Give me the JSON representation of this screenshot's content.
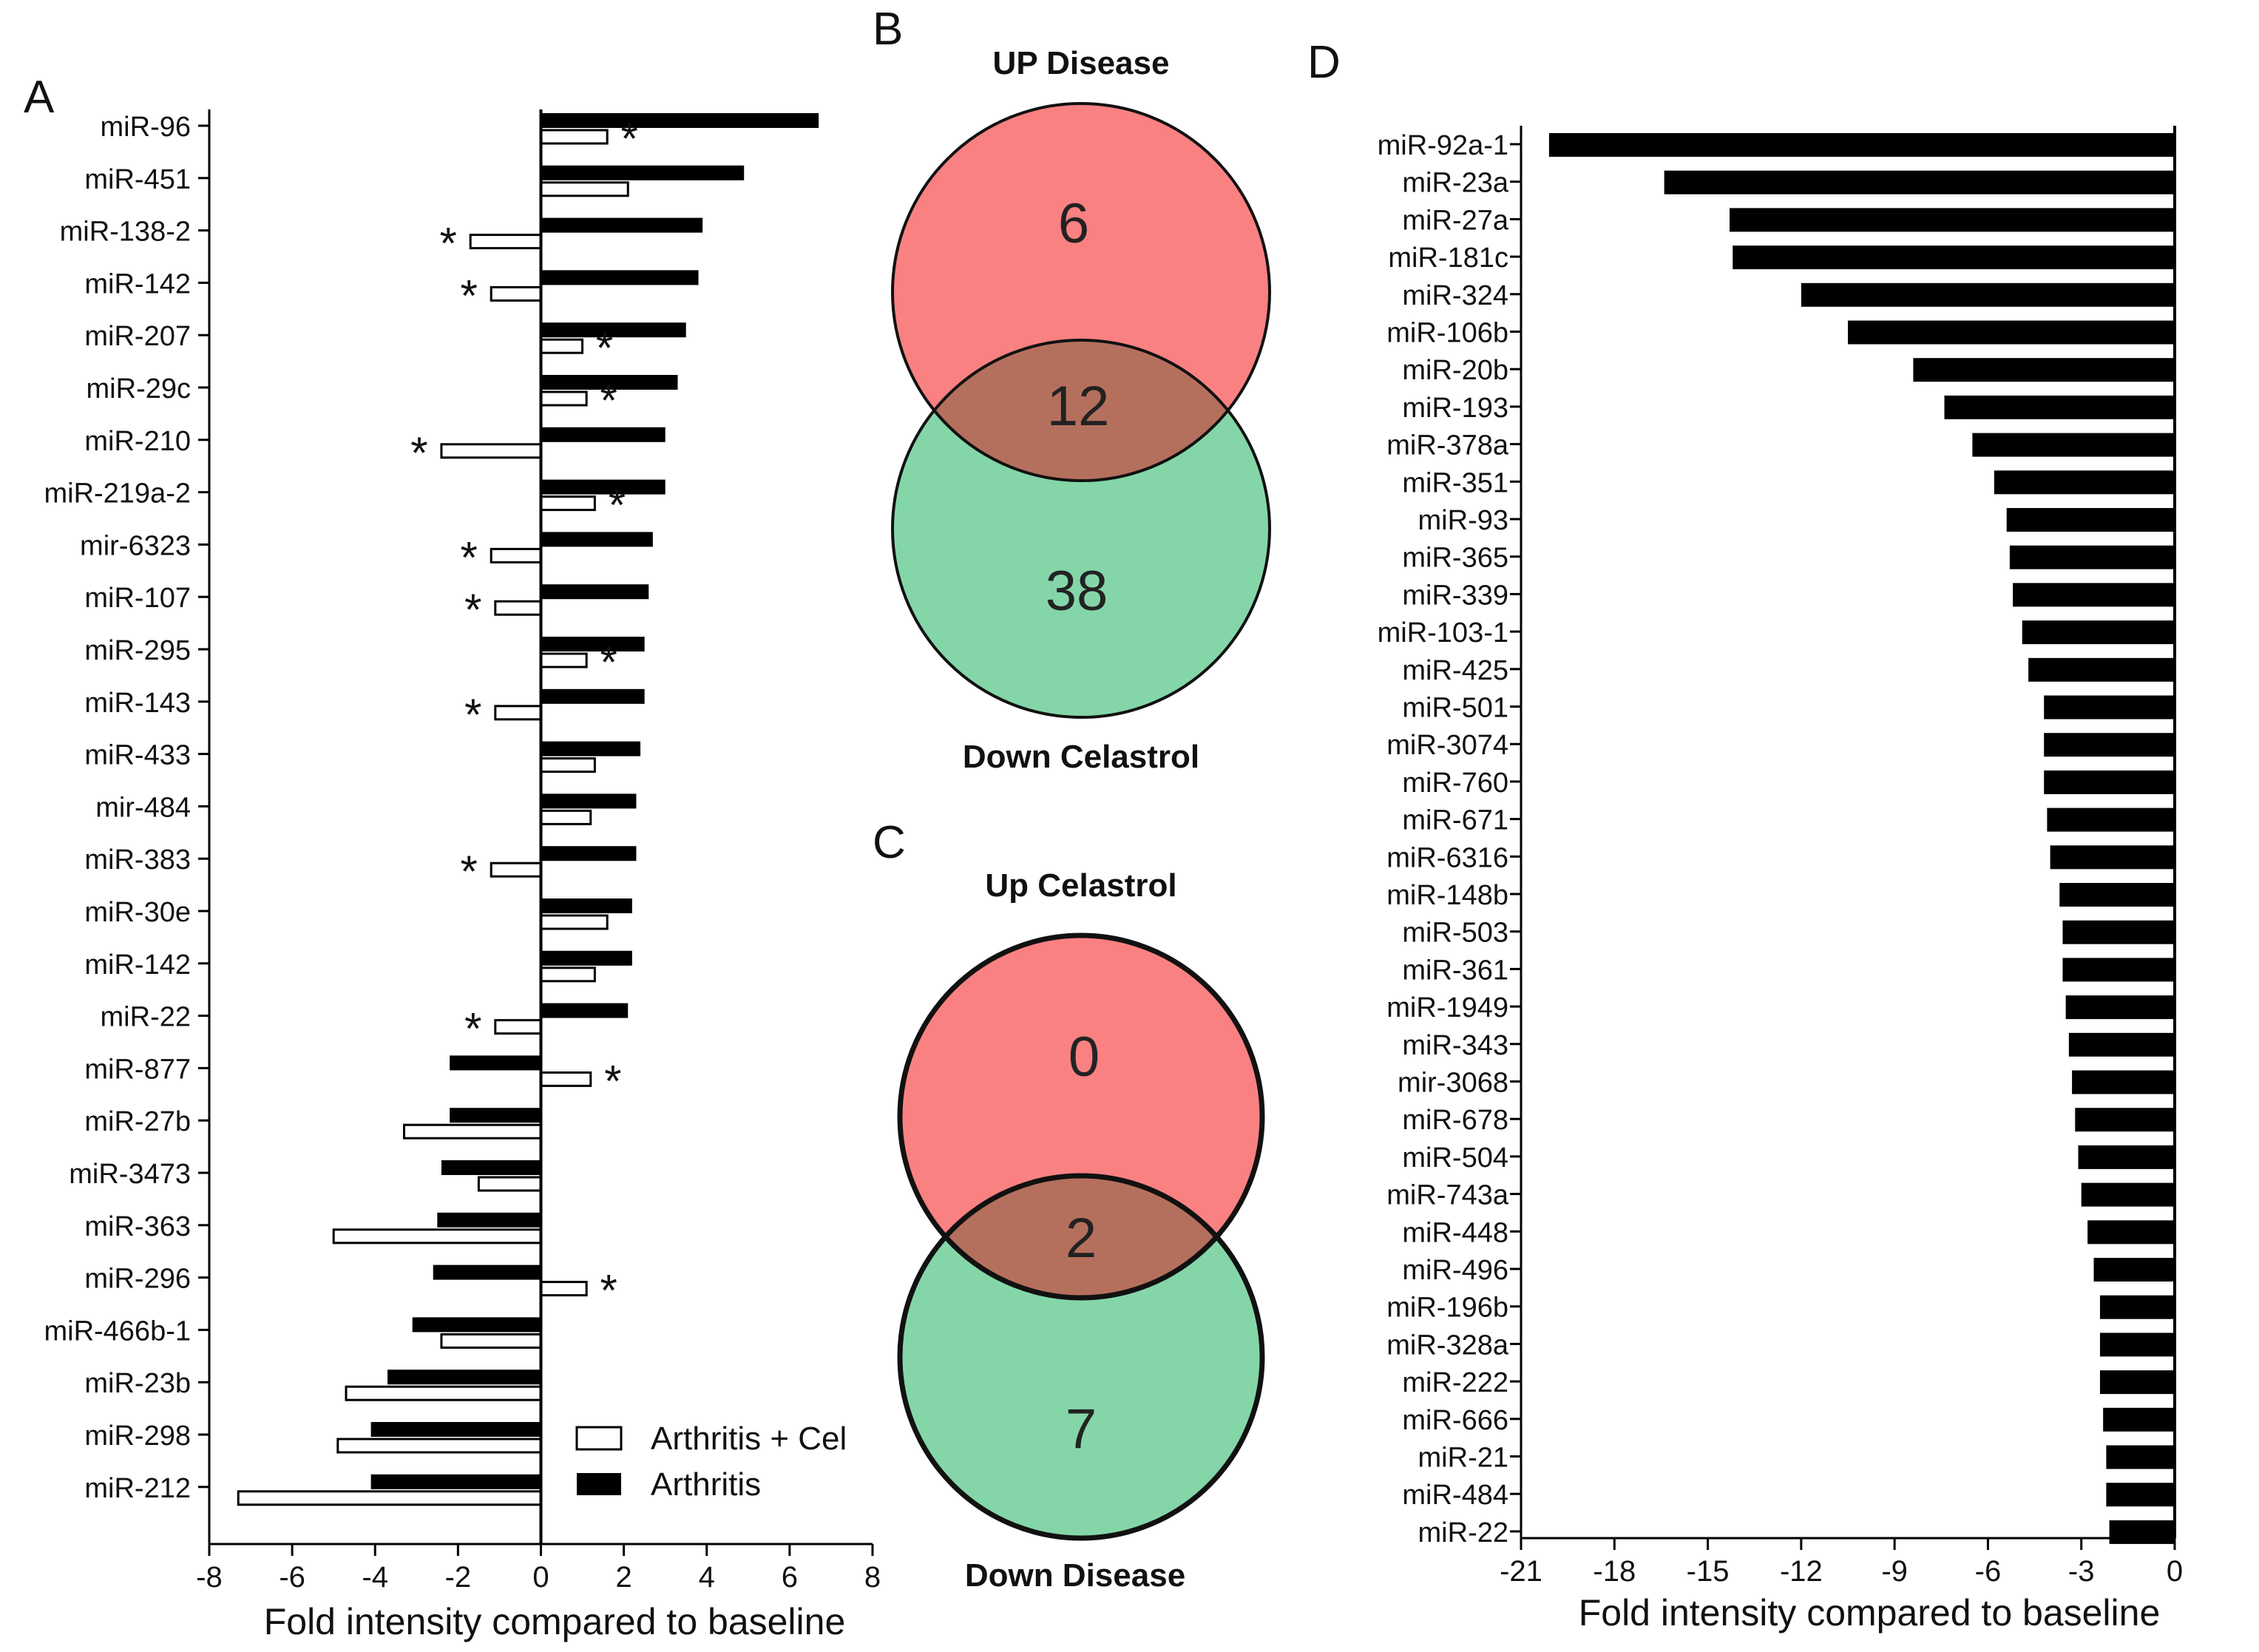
{
  "panels": {
    "a": "A",
    "b": "B",
    "c": "C",
    "d": "D"
  },
  "chart_data": [
    {
      "id": "A",
      "type": "bar",
      "orientation": "horizontal",
      "xlabel": "Fold intensity compared to baseline",
      "xlim": [
        -8,
        8
      ],
      "xticks": [
        -8,
        -6,
        -4,
        -2,
        0,
        2,
        4,
        6,
        8
      ],
      "legend": [
        "Arthritis + Cel",
        "Arthritis"
      ],
      "legend_position": "bottom-right",
      "categories": [
        "miR-96",
        "miR-451",
        "miR-138-2",
        "miR-142",
        "miR-207",
        "miR-29c",
        "miR-210",
        "miR-219a-2",
        "mir-6323",
        "miR-107",
        "miR-295",
        "miR-143",
        "miR-433",
        "mir-484",
        "miR-383",
        "miR-30e",
        "miR-142",
        "miR-22",
        "miR-877",
        "miR-27b",
        "miR-3473",
        "miR-363",
        "miR-296",
        "miR-466b-1",
        "miR-23b",
        "miR-298",
        "miR-212"
      ],
      "series": [
        {
          "name": "Arthritis",
          "values": [
            6.7,
            4.9,
            3.9,
            3.8,
            3.5,
            3.3,
            3.0,
            3.0,
            2.7,
            2.6,
            2.5,
            2.5,
            2.4,
            2.3,
            2.3,
            2.2,
            2.2,
            2.1,
            -2.2,
            -2.2,
            -2.4,
            -2.5,
            -2.6,
            -3.1,
            -3.7,
            -4.1,
            -4.1
          ]
        },
        {
          "name": "Arthritis + Cel",
          "values": [
            1.6,
            2.1,
            -1.7,
            -1.2,
            1.0,
            1.1,
            -2.4,
            1.3,
            -1.2,
            -1.1,
            1.1,
            -1.1,
            1.3,
            1.2,
            -1.2,
            1.6,
            1.3,
            -1.1,
            1.2,
            -3.3,
            -1.5,
            -5.0,
            1.1,
            -2.4,
            -4.7,
            -4.9,
            -7.3
          ]
        }
      ],
      "significant": [
        "*",
        "",
        "*",
        "*",
        "*",
        "*",
        "*",
        "*",
        "*",
        "*",
        "*",
        "*",
        "",
        "",
        "*",
        "",
        "",
        "*",
        "*",
        "",
        "",
        "",
        "*",
        "",
        "",
        "",
        ""
      ]
    },
    {
      "id": "B",
      "type": "venn",
      "title_top": "UP Disease",
      "title_bottom": "Down Celastrol",
      "only_top": "6",
      "overlap": "12",
      "only_bottom": "38",
      "colors": {
        "top": "#fa8181",
        "bottom": "#84d6a8",
        "overlap": "#b5705d"
      }
    },
    {
      "id": "C",
      "type": "venn",
      "title_top": "Up Celastrol",
      "title_bottom": "Down Disease",
      "only_top": "0",
      "overlap": "2",
      "only_bottom": "7",
      "colors": {
        "top": "#fa8181",
        "bottom": "#84d6a8",
        "overlap": "#b5705d"
      }
    },
    {
      "id": "D",
      "type": "bar",
      "orientation": "horizontal",
      "xlabel": "Fold intensity compared to baseline",
      "xlim": [
        -21,
        0
      ],
      "xticks": [
        -21,
        -18,
        -15,
        -12,
        -9,
        -6,
        -3,
        0
      ],
      "categories": [
        "miR-92a-1",
        "miR-23a",
        "miR-27a",
        "miR-181c",
        "miR-324",
        "miR-106b",
        "miR-20b",
        "miR-193",
        "miR-378a",
        "miR-351",
        "miR-93",
        "miR-365",
        "miR-339",
        "miR-103-1",
        "miR-425",
        "miR-501",
        "miR-3074",
        "miR-760",
        "miR-671",
        "miR-6316",
        "miR-148b",
        "miR-503",
        "miR-361",
        "miR-1949",
        "miR-343",
        "mir-3068",
        "miR-678",
        "miR-504",
        "miR-743a",
        "miR-448",
        "miR-496",
        "miR-196b",
        "miR-328a",
        "miR-222",
        "miR-666",
        "miR-21",
        "miR-484",
        "miR-22"
      ],
      "values": [
        -20.1,
        -16.4,
        -14.3,
        -14.2,
        -12.0,
        -10.5,
        -8.4,
        -7.4,
        -6.5,
        -5.8,
        -5.4,
        -5.3,
        -5.2,
        -4.9,
        -4.7,
        -4.2,
        -4.2,
        -4.2,
        -4.1,
        -4.0,
        -3.7,
        -3.6,
        -3.6,
        -3.5,
        -3.4,
        -3.3,
        -3.2,
        -3.1,
        -3.0,
        -2.8,
        -2.6,
        -2.4,
        -2.4,
        -2.4,
        -2.3,
        -2.2,
        -2.2,
        -2.1
      ]
    }
  ]
}
